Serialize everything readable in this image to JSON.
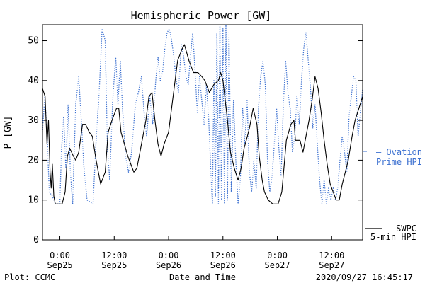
{
  "chart_data": {
    "type": "line",
    "title": "Hemispheric Power [GW]",
    "ylabel": "P [GW]",
    "xlabel": "Date and Time",
    "ylim": [
      0,
      54
    ],
    "xlim": [
      "2020-09-24T20:10",
      "2020-09-27T18:50"
    ],
    "yticks": [
      0,
      10,
      20,
      30,
      40,
      50
    ],
    "xticks": [
      {
        "t": "2020-09-25T00:00",
        "time": "0:00",
        "date": "Sep25"
      },
      {
        "t": "2020-09-25T12:00",
        "time": "12:00",
        "date": "Sep25"
      },
      {
        "t": "2020-09-26T00:00",
        "time": "0:00",
        "date": "Sep26"
      },
      {
        "t": "2020-09-26T12:00",
        "time": "12:00",
        "date": "Sep26"
      },
      {
        "t": "2020-09-27T00:00",
        "time": "0:00",
        "date": "Sep27"
      },
      {
        "t": "2020-09-27T12:00",
        "time": "12:00",
        "date": "Sep27"
      }
    ],
    "series": [
      {
        "name": "SWPC 5-min HPI",
        "color": "#000000",
        "style": "solid",
        "points": [
          [
            "2020-09-24T20:10",
            38
          ],
          [
            "2020-09-24T20:45",
            36
          ],
          [
            "2020-09-24T21:10",
            24
          ],
          [
            "2020-09-24T21:30",
            30
          ],
          [
            "2020-09-24T21:50",
            17
          ],
          [
            "2020-09-24T22:05",
            13
          ],
          [
            "2020-09-24T22:20",
            19
          ],
          [
            "2020-09-24T22:40",
            11
          ],
          [
            "2020-09-24T23:00",
            9
          ],
          [
            "2020-09-25T00:30",
            9
          ],
          [
            "2020-09-25T01:10",
            12
          ],
          [
            "2020-09-25T01:40",
            21
          ],
          [
            "2020-09-25T02:10",
            23
          ],
          [
            "2020-09-25T03:00",
            21
          ],
          [
            "2020-09-25T03:30",
            20
          ],
          [
            "2020-09-25T04:10",
            22
          ],
          [
            "2020-09-25T05:00",
            29
          ],
          [
            "2020-09-25T05:40",
            29
          ],
          [
            "2020-09-25T06:30",
            27
          ],
          [
            "2020-09-25T07:10",
            26
          ],
          [
            "2020-09-25T08:00",
            20
          ],
          [
            "2020-09-25T09:00",
            14
          ],
          [
            "2020-09-25T10:00",
            17
          ],
          [
            "2020-09-25T10:40",
            27
          ],
          [
            "2020-09-25T11:30",
            30
          ],
          [
            "2020-09-25T12:30",
            33
          ],
          [
            "2020-09-25T13:00",
            33
          ],
          [
            "2020-09-25T13:30",
            27
          ],
          [
            "2020-09-25T14:00",
            25
          ],
          [
            "2020-09-25T15:00",
            21
          ],
          [
            "2020-09-25T15:40",
            19
          ],
          [
            "2020-09-25T16:20",
            17
          ],
          [
            "2020-09-25T17:00",
            18
          ],
          [
            "2020-09-25T18:00",
            24
          ],
          [
            "2020-09-25T19:00",
            30
          ],
          [
            "2020-09-25T19:40",
            36
          ],
          [
            "2020-09-25T20:20",
            37
          ],
          [
            "2020-09-25T21:00",
            30
          ],
          [
            "2020-09-25T21:40",
            24
          ],
          [
            "2020-09-25T22:20",
            21
          ],
          [
            "2020-09-25T23:00",
            24
          ],
          [
            "2020-09-26T00:00",
            27
          ],
          [
            "2020-09-26T01:00",
            36
          ],
          [
            "2020-09-26T02:00",
            45
          ],
          [
            "2020-09-26T03:00",
            48
          ],
          [
            "2020-09-26T03:30",
            49
          ],
          [
            "2020-09-26T04:30",
            45
          ],
          [
            "2020-09-26T05:30",
            42
          ],
          [
            "2020-09-26T06:30",
            42
          ],
          [
            "2020-09-26T07:20",
            41
          ],
          [
            "2020-09-26T08:00",
            40
          ],
          [
            "2020-09-26T09:00",
            37
          ],
          [
            "2020-09-26T10:00",
            39
          ],
          [
            "2020-09-26T11:00",
            40
          ],
          [
            "2020-09-26T11:30",
            42
          ],
          [
            "2020-09-26T12:00",
            40
          ],
          [
            "2020-09-26T13:00",
            30
          ],
          [
            "2020-09-26T13:40",
            22
          ],
          [
            "2020-09-26T14:30",
            18
          ],
          [
            "2020-09-26T15:20",
            15
          ],
          [
            "2020-09-26T16:00",
            18
          ],
          [
            "2020-09-26T16:40",
            23
          ],
          [
            "2020-09-26T17:10",
            25
          ],
          [
            "2020-09-26T17:50",
            28
          ],
          [
            "2020-09-26T18:40",
            33
          ],
          [
            "2020-09-26T19:30",
            29
          ],
          [
            "2020-09-26T20:00",
            21
          ],
          [
            "2020-09-26T20:40",
            15
          ],
          [
            "2020-09-26T21:10",
            12
          ],
          [
            "2020-09-26T22:00",
            10
          ],
          [
            "2020-09-26T23:00",
            9
          ],
          [
            "2020-09-27T00:10",
            9
          ],
          [
            "2020-09-27T01:00",
            12
          ],
          [
            "2020-09-27T02:00",
            25
          ],
          [
            "2020-09-27T03:00",
            29
          ],
          [
            "2020-09-27T03:40",
            30
          ],
          [
            "2020-09-27T04:00",
            25
          ],
          [
            "2020-09-27T05:00",
            25
          ],
          [
            "2020-09-27T05:40",
            22
          ],
          [
            "2020-09-27T06:20",
            26
          ],
          [
            "2020-09-27T07:00",
            30
          ],
          [
            "2020-09-27T07:40",
            35
          ],
          [
            "2020-09-27T08:20",
            41
          ],
          [
            "2020-09-27T09:00",
            38
          ],
          [
            "2020-09-27T09:40",
            32
          ],
          [
            "2020-09-27T10:20",
            25
          ],
          [
            "2020-09-27T11:00",
            19
          ],
          [
            "2020-09-27T11:40",
            14
          ],
          [
            "2020-09-27T12:20",
            12
          ],
          [
            "2020-09-27T13:00",
            10
          ],
          [
            "2020-09-27T13:40",
            10
          ],
          [
            "2020-09-27T14:20",
            14
          ],
          [
            "2020-09-27T15:00",
            17
          ],
          [
            "2020-09-27T15:40",
            20
          ],
          [
            "2020-09-27T16:30",
            26
          ],
          [
            "2020-09-27T17:10",
            30
          ],
          [
            "2020-09-27T18:00",
            33
          ],
          [
            "2020-09-27T18:50",
            36
          ]
        ]
      },
      {
        "name": "Ovation Prime HPI",
        "color": "#3a6fd0",
        "style": "dotted",
        "points": [
          [
            "2020-09-24T20:10",
            27
          ],
          [
            "2020-09-24T20:40",
            36
          ],
          [
            "2020-09-24T21:10",
            27
          ],
          [
            "2020-09-24T21:40",
            12
          ],
          [
            "2020-09-24T22:20",
            11
          ],
          [
            "2020-09-24T23:00",
            9
          ],
          [
            "2020-09-25T00:00",
            9
          ],
          [
            "2020-09-25T00:20",
            22
          ],
          [
            "2020-09-25T00:50",
            31
          ],
          [
            "2020-09-25T01:20",
            18
          ],
          [
            "2020-09-25T01:50",
            34
          ],
          [
            "2020-09-25T02:20",
            17
          ],
          [
            "2020-09-25T02:50",
            9
          ],
          [
            "2020-09-25T03:30",
            34
          ],
          [
            "2020-09-25T04:10",
            41
          ],
          [
            "2020-09-25T04:50",
            28
          ],
          [
            "2020-09-25T05:20",
            18
          ],
          [
            "2020-09-25T06:00",
            10
          ],
          [
            "2020-09-25T07:20",
            9
          ],
          [
            "2020-09-25T08:00",
            25
          ],
          [
            "2020-09-25T08:40",
            37
          ],
          [
            "2020-09-25T09:20",
            53
          ],
          [
            "2020-09-25T10:00",
            50
          ],
          [
            "2020-09-25T10:30",
            23
          ],
          [
            "2020-09-25T11:00",
            15
          ],
          [
            "2020-09-25T11:40",
            35
          ],
          [
            "2020-09-25T12:20",
            46
          ],
          [
            "2020-09-25T12:50",
            34
          ],
          [
            "2020-09-25T13:20",
            45
          ],
          [
            "2020-09-25T13:50",
            33
          ],
          [
            "2020-09-25T14:30",
            21
          ],
          [
            "2020-09-25T15:10",
            17
          ],
          [
            "2020-09-25T15:50",
            22
          ],
          [
            "2020-09-25T16:40",
            34
          ],
          [
            "2020-09-25T17:20",
            37
          ],
          [
            "2020-09-25T18:00",
            41
          ],
          [
            "2020-09-25T18:40",
            31
          ],
          [
            "2020-09-25T19:10",
            26
          ],
          [
            "2020-09-25T19:50",
            36
          ],
          [
            "2020-09-25T20:30",
            29
          ],
          [
            "2020-09-25T21:10",
            40
          ],
          [
            "2020-09-25T21:40",
            46
          ],
          [
            "2020-09-25T22:10",
            40
          ],
          [
            "2020-09-25T22:40",
            42
          ],
          [
            "2020-09-25T23:10",
            48
          ],
          [
            "2020-09-25T23:40",
            52
          ],
          [
            "2020-09-26T00:10",
            53
          ],
          [
            "2020-09-26T00:40",
            50
          ],
          [
            "2020-09-26T01:10",
            46
          ],
          [
            "2020-09-26T01:40",
            40
          ],
          [
            "2020-09-26T02:10",
            37
          ],
          [
            "2020-09-26T02:50",
            49
          ],
          [
            "2020-09-26T03:20",
            46
          ],
          [
            "2020-09-26T03:50",
            41
          ],
          [
            "2020-09-26T04:20",
            39
          ],
          [
            "2020-09-26T04:50",
            46
          ],
          [
            "2020-09-26T05:20",
            52
          ],
          [
            "2020-09-26T05:50",
            43
          ],
          [
            "2020-09-26T06:20",
            32
          ],
          [
            "2020-09-26T06:50",
            41
          ],
          [
            "2020-09-26T07:20",
            35
          ],
          [
            "2020-09-26T07:50",
            29
          ],
          [
            "2020-09-26T08:20",
            39
          ],
          [
            "2020-09-26T08:50",
            31
          ],
          [
            "2020-09-26T09:20",
            17
          ],
          [
            "2020-09-26T09:40",
            9
          ],
          [
            "2020-09-26T10:00",
            40
          ],
          [
            "2020-09-26T10:20",
            11
          ],
          [
            "2020-09-26T10:40",
            52
          ],
          [
            "2020-09-26T11:00",
            9
          ],
          [
            "2020-09-26T11:20",
            54
          ],
          [
            "2020-09-26T11:40",
            10
          ],
          [
            "2020-09-26T12:00",
            53
          ],
          [
            "2020-09-26T12:20",
            9
          ],
          [
            "2020-09-26T12:40",
            54
          ],
          [
            "2020-09-26T13:00",
            10
          ],
          [
            "2020-09-26T13:20",
            52
          ],
          [
            "2020-09-26T13:50",
            12
          ],
          [
            "2020-09-26T14:20",
            35
          ],
          [
            "2020-09-26T14:50",
            20
          ],
          [
            "2020-09-26T15:20",
            9
          ],
          [
            "2020-09-26T15:50",
            15
          ],
          [
            "2020-09-26T16:20",
            33
          ],
          [
            "2020-09-26T16:50",
            24
          ],
          [
            "2020-09-26T17:20",
            35
          ],
          [
            "2020-09-26T17:50",
            17
          ],
          [
            "2020-09-26T18:20",
            12
          ],
          [
            "2020-09-26T18:50",
            20
          ],
          [
            "2020-09-26T19:20",
            13
          ],
          [
            "2020-09-26T19:50",
            33
          ],
          [
            "2020-09-26T20:20",
            41
          ],
          [
            "2020-09-26T20:50",
            45
          ],
          [
            "2020-09-26T21:20",
            39
          ],
          [
            "2020-09-26T21:50",
            20
          ],
          [
            "2020-09-26T22:20",
            12
          ],
          [
            "2020-09-26T22:50",
            16
          ],
          [
            "2020-09-26T23:20",
            24
          ],
          [
            "2020-09-26T23:50",
            33
          ],
          [
            "2020-09-27T00:20",
            23
          ],
          [
            "2020-09-27T00:50",
            16
          ],
          [
            "2020-09-27T01:20",
            34
          ],
          [
            "2020-09-27T01:50",
            45
          ],
          [
            "2020-09-27T02:20",
            37
          ],
          [
            "2020-09-27T02:50",
            33
          ],
          [
            "2020-09-27T03:20",
            22
          ],
          [
            "2020-09-27T03:50",
            26
          ],
          [
            "2020-09-27T04:20",
            36
          ],
          [
            "2020-09-27T04:50",
            29
          ],
          [
            "2020-09-27T05:20",
            40
          ],
          [
            "2020-09-27T05:50",
            48
          ],
          [
            "2020-09-27T06:20",
            52
          ],
          [
            "2020-09-27T06:50",
            45
          ],
          [
            "2020-09-27T07:20",
            38
          ],
          [
            "2020-09-27T07:50",
            28
          ],
          [
            "2020-09-27T08:20",
            34
          ],
          [
            "2020-09-27T08:50",
            24
          ],
          [
            "2020-09-27T09:20",
            15
          ],
          [
            "2020-09-27T09:50",
            9
          ],
          [
            "2020-09-27T10:20",
            15
          ],
          [
            "2020-09-27T10:50",
            9
          ],
          [
            "2020-09-27T11:20",
            13
          ],
          [
            "2020-09-27T11:50",
            10
          ],
          [
            "2020-09-27T12:20",
            13
          ],
          [
            "2020-09-27T12:50",
            10
          ],
          [
            "2020-09-27T13:20",
            13
          ],
          [
            "2020-09-27T13:50",
            20
          ],
          [
            "2020-09-27T14:20",
            26
          ],
          [
            "2020-09-27T14:50",
            22
          ],
          [
            "2020-09-27T15:20",
            17
          ],
          [
            "2020-09-27T15:50",
            31
          ],
          [
            "2020-09-27T16:20",
            36
          ],
          [
            "2020-09-27T16:50",
            41
          ],
          [
            "2020-09-27T17:20",
            40
          ],
          [
            "2020-09-27T17:50",
            26
          ],
          [
            "2020-09-27T18:20",
            32
          ],
          [
            "2020-09-27T18:50",
            38
          ]
        ]
      }
    ],
    "legend": [
      {
        "lines": [
          "— Ovation",
          "Prime HPI"
        ],
        "color": "#3a6fd0"
      },
      {
        "lines": [
          "SWPC",
          "5-min HPI"
        ],
        "color": "#000000"
      }
    ]
  },
  "footer": {
    "left": "Plot: CCMC",
    "center": "Date and Time",
    "right": "2020/09/27 16:45:17"
  }
}
